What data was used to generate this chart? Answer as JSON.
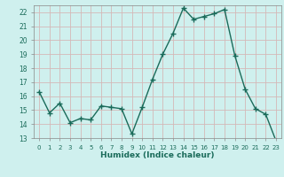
{
  "x": [
    0,
    1,
    2,
    3,
    4,
    5,
    6,
    7,
    8,
    9,
    10,
    11,
    12,
    13,
    14,
    15,
    16,
    17,
    18,
    19,
    20,
    21,
    22,
    23
  ],
  "y": [
    16.3,
    14.8,
    15.5,
    14.1,
    14.4,
    14.3,
    15.3,
    15.2,
    15.1,
    13.3,
    15.2,
    17.2,
    19.0,
    20.5,
    22.3,
    21.5,
    21.7,
    21.9,
    22.2,
    18.9,
    16.5,
    15.1,
    14.7,
    12.8
  ],
  "xlabel": "Humidex (Indice chaleur)",
  "ylim": [
    13,
    22.5
  ],
  "yticks": [
    13,
    14,
    15,
    16,
    17,
    18,
    19,
    20,
    21,
    22
  ],
  "xticks": [
    0,
    1,
    2,
    3,
    4,
    5,
    6,
    7,
    8,
    9,
    10,
    11,
    12,
    13,
    14,
    15,
    16,
    17,
    18,
    19,
    20,
    21,
    22,
    23
  ],
  "xtick_labels": [
    "0",
    "1",
    "2",
    "3",
    "4",
    "5",
    "6",
    "7",
    "8",
    "9",
    "10",
    "11",
    "12",
    "13",
    "14",
    "15",
    "16",
    "17",
    "18",
    "19",
    "20",
    "21",
    "22",
    "23"
  ],
  "line_color": "#1a6b5a",
  "marker": "+",
  "marker_size": 4,
  "line_width": 1.0,
  "bg_color": "#cff0ee",
  "grid_color": "#d4b8b8",
  "plot_bg": "#cff0ee",
  "tick_color": "#1a6b5a",
  "label_color": "#1a6b5a",
  "spine_color": "#888888"
}
